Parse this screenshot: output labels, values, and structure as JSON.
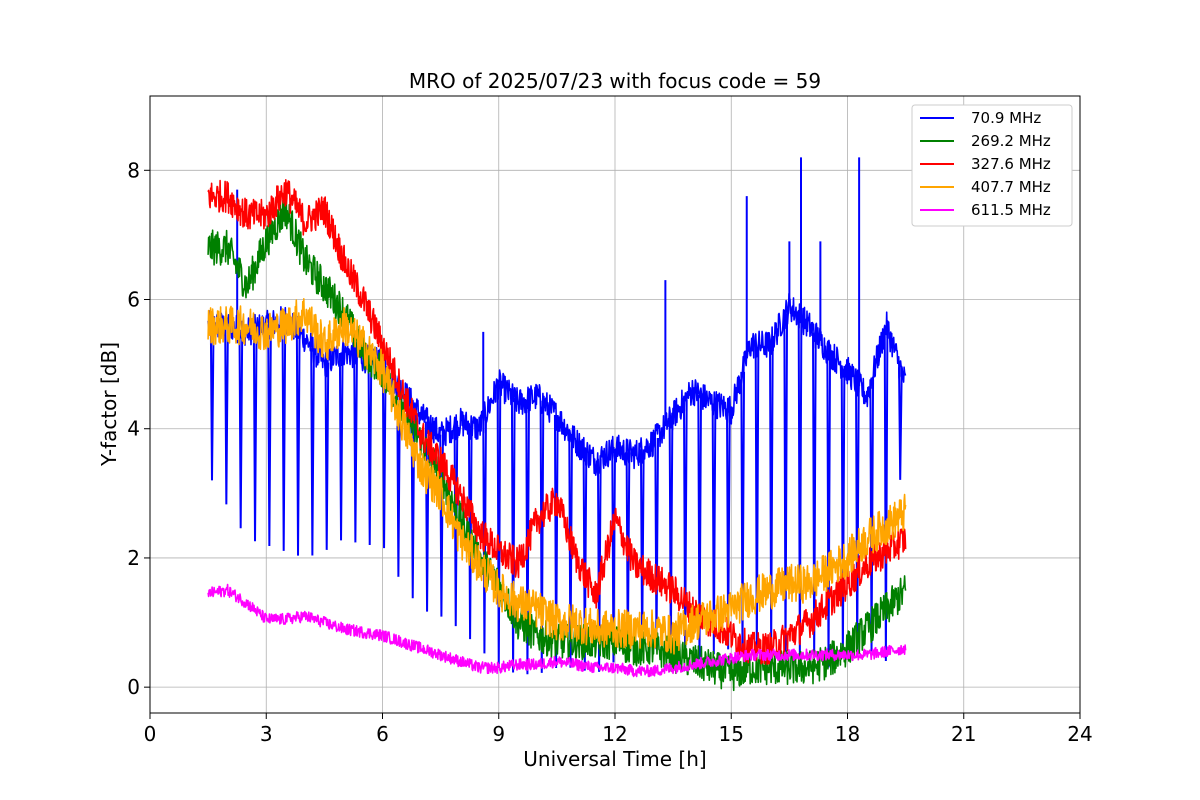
{
  "chart_data": {
    "type": "line",
    "title": "MRO of 2025/07/23 with focus code = 59",
    "xlabel": "Universal Time [h]",
    "ylabel": "Y-factor [dB]",
    "xlim": [
      0,
      24
    ],
    "ylim": [
      -0.4,
      9.15
    ],
    "xticks": [
      0,
      3,
      6,
      9,
      12,
      15,
      18,
      21,
      24
    ],
    "yticks": [
      0,
      2,
      4,
      6,
      8
    ],
    "xtick_labels": [
      "0",
      "3",
      "6",
      "9",
      "12",
      "15",
      "18",
      "21",
      "24"
    ],
    "ytick_labels": [
      "0",
      "2",
      "4",
      "6",
      "8"
    ],
    "grid": true,
    "legend_position": "top-right",
    "series": [
      {
        "name": " 70.9 MHz",
        "color": "#0000ff",
        "x": [
          1.5,
          2,
          2.5,
          3,
          3.5,
          4,
          4.5,
          5,
          5.5,
          6,
          6.5,
          7,
          7.5,
          8,
          8.5,
          9,
          9.5,
          10,
          10.5,
          11,
          11.5,
          12,
          12.5,
          13,
          13.5,
          14,
          14.5,
          15,
          15.5,
          16,
          16.5,
          17,
          17.5,
          18,
          18.5,
          19,
          19.5
        ],
        "y": [
          5.6,
          5.6,
          5.5,
          5.6,
          5.7,
          5.4,
          5.0,
          5.2,
          5.1,
          5.0,
          4.6,
          4.2,
          3.9,
          4.1,
          4.0,
          4.7,
          4.4,
          4.5,
          4.2,
          3.8,
          3.5,
          3.7,
          3.6,
          3.8,
          4.2,
          4.6,
          4.4,
          4.3,
          5.3,
          5.3,
          5.9,
          5.6,
          5.2,
          4.9,
          4.5,
          5.6,
          4.7
        ],
        "dip_floor": [
          3.3,
          2.8,
          2.3,
          2.2,
          2.1,
          2.0,
          2.1,
          2.3,
          2.2,
          2.2,
          1.6,
          1.2,
          1.1,
          0.9,
          0.6,
          0.3,
          0.2,
          0.2,
          0.3,
          0.3,
          0.2,
          0.4,
          0.5,
          0.6,
          0.5,
          0.4,
          0.5,
          0.6,
          0.5,
          0.6,
          0.4,
          0.5,
          0.3,
          0.5,
          0.6,
          0.4,
          4.3
        ],
        "spikes": [
          [
            2.25,
            7.7
          ],
          [
            15.4,
            7.6
          ],
          [
            16.5,
            6.9
          ],
          [
            17.3,
            6.9
          ],
          [
            16.8,
            8.2
          ],
          [
            18.3,
            8.2
          ],
          [
            13.3,
            6.3
          ],
          [
            8.6,
            5.5
          ]
        ]
      },
      {
        "name": "269.2 MHz",
        "color": "#008000",
        "x": [
          1.5,
          2,
          2.5,
          3,
          3.5,
          4,
          4.5,
          5,
          5.5,
          6,
          6.5,
          7,
          7.5,
          8,
          8.5,
          9,
          9.5,
          10,
          10.5,
          11,
          11.5,
          12,
          12.5,
          13,
          13.5,
          14,
          14.5,
          15,
          15.5,
          16,
          16.5,
          17,
          17.5,
          18,
          18.5,
          19,
          19.5
        ],
        "y": [
          6.8,
          6.8,
          6.2,
          6.9,
          7.4,
          6.6,
          6.2,
          5.8,
          5.2,
          4.9,
          4.3,
          3.8,
          3.3,
          2.6,
          2.0,
          1.6,
          1.0,
          0.8,
          0.7,
          0.7,
          0.7,
          0.7,
          0.6,
          0.6,
          0.5,
          0.4,
          0.3,
          0.2,
          0.3,
          0.3,
          0.3,
          0.3,
          0.4,
          0.6,
          0.9,
          1.2,
          1.5
        ]
      },
      {
        "name": "327.6 MHz",
        "color": "#ff0000",
        "x": [
          1.5,
          2,
          2.5,
          3,
          3.5,
          4,
          4.5,
          5,
          5.5,
          6,
          6.5,
          7,
          7.5,
          8,
          8.5,
          9,
          9.5,
          10,
          10.5,
          11,
          11.5,
          12,
          12.5,
          13,
          13.5,
          14,
          14.5,
          15,
          15.5,
          16,
          16.5,
          17,
          17.5,
          18,
          18.5,
          19,
          19.5
        ],
        "y": [
          7.6,
          7.6,
          7.3,
          7.3,
          7.7,
          7.2,
          7.4,
          6.6,
          6.0,
          5.3,
          4.6,
          3.9,
          3.5,
          3.0,
          2.4,
          2.1,
          1.9,
          2.6,
          2.9,
          2.0,
          1.4,
          2.6,
          1.9,
          1.7,
          1.5,
          1.2,
          1.0,
          0.8,
          0.6,
          0.6,
          0.8,
          1.0,
          1.3,
          1.6,
          1.9,
          2.1,
          2.3
        ]
      },
      {
        "name": "407.7 MHz",
        "color": "#ffa500",
        "x": [
          1.5,
          2,
          2.5,
          3,
          3.5,
          4,
          4.5,
          5,
          5.5,
          6,
          6.5,
          7,
          7.5,
          8,
          8.5,
          9,
          9.5,
          10,
          10.5,
          11,
          11.5,
          12,
          12.5,
          13,
          13.5,
          14,
          14.5,
          15,
          15.5,
          16,
          16.5,
          17,
          17.5,
          18,
          18.5,
          19,
          19.5
        ],
        "y": [
          5.6,
          5.6,
          5.6,
          5.5,
          5.6,
          5.8,
          5.3,
          5.6,
          5.3,
          4.9,
          4.1,
          3.4,
          3.0,
          2.3,
          1.9,
          1.5,
          1.3,
          1.2,
          1.0,
          1.0,
          0.9,
          0.9,
          0.9,
          0.9,
          0.8,
          1.0,
          1.1,
          1.2,
          1.4,
          1.5,
          1.6,
          1.6,
          1.8,
          2.0,
          2.3,
          2.5,
          2.7
        ]
      },
      {
        "name": "611.5 MHz",
        "color": "#ff00ff",
        "x": [
          1.5,
          2,
          2.5,
          3,
          3.5,
          4,
          4.5,
          5,
          5.5,
          6,
          6.5,
          7,
          7.5,
          8,
          8.5,
          9,
          9.5,
          10,
          10.5,
          11,
          11.5,
          12,
          12.5,
          13,
          13.5,
          14,
          14.5,
          15,
          15.5,
          16,
          16.5,
          17,
          17.5,
          18,
          18.5,
          19,
          19.5
        ],
        "y": [
          1.45,
          1.5,
          1.3,
          1.05,
          1.05,
          1.1,
          1.0,
          0.9,
          0.85,
          0.8,
          0.7,
          0.6,
          0.5,
          0.4,
          0.3,
          0.3,
          0.35,
          0.35,
          0.4,
          0.35,
          0.3,
          0.3,
          0.25,
          0.25,
          0.3,
          0.35,
          0.4,
          0.45,
          0.5,
          0.5,
          0.5,
          0.5,
          0.5,
          0.5,
          0.5,
          0.55,
          0.6
        ]
      }
    ]
  }
}
